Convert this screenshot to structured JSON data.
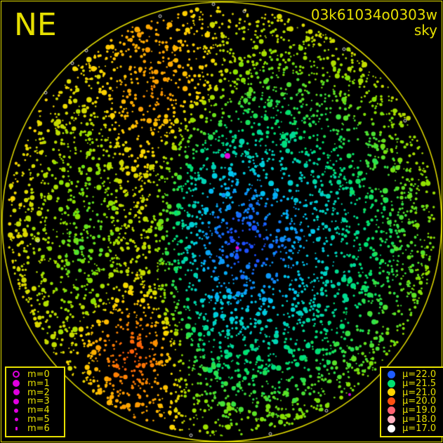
{
  "header": {
    "direction": "NE",
    "frame_id": "03k61034o0303w",
    "kind": "sky"
  },
  "magnitude_legend": [
    {
      "label": "m=0",
      "hollow": true
    },
    {
      "label": "m=1"
    },
    {
      "label": "m=2"
    },
    {
      "label": "m=3"
    },
    {
      "label": "m=4"
    },
    {
      "label": "m=5"
    },
    {
      "label": "m=6"
    }
  ],
  "brightness_legend": [
    {
      "label": "μ=22.0",
      "color": "#1f5cff"
    },
    {
      "label": "μ=21.5",
      "color": "#00e070"
    },
    {
      "label": "μ=21.0",
      "color": "#ffd400"
    },
    {
      "label": "μ=20.0",
      "color": "#ff5010"
    },
    {
      "label": "μ=19.0",
      "color": "#ff6070"
    },
    {
      "label": "μ=18.0",
      "color": "#ffb0c0"
    },
    {
      "label": "μ=17.0",
      "color": "#ffffff"
    }
  ],
  "colors": {
    "frame": "#e6e000",
    "magnitude_symbol": "#e000e0",
    "background": "#000000"
  }
}
